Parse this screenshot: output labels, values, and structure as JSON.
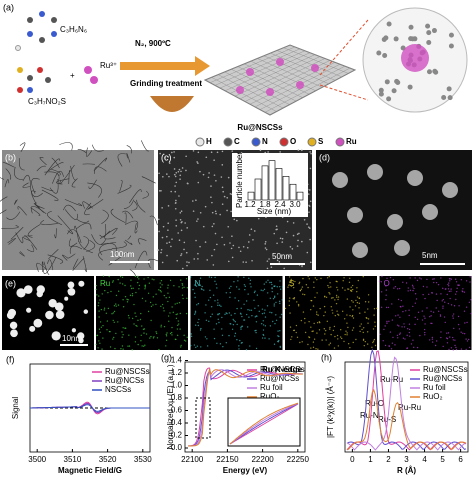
{
  "panel_a": {
    "label": "(a)",
    "reagent1": "C₃H₆N₆",
    "reagent2": "C₃H₇NO₂S",
    "plus": "+",
    "ion": "Ru³⁺",
    "condition": "N₂, 900ºC",
    "process": "Grinding treatment",
    "product": "Ru@NSCSs",
    "legend": [
      {
        "name": "H",
        "color": "#e8e8e8"
      },
      {
        "name": "C",
        "color": "#555555"
      },
      {
        "name": "N",
        "color": "#3a5bd0"
      },
      {
        "name": "O",
        "color": "#d03030"
      },
      {
        "name": "S",
        "color": "#e0b020"
      },
      {
        "name": "Ru",
        "color": "#d050c0"
      }
    ]
  },
  "panel_b": {
    "label": "(b)",
    "scale": "100nm"
  },
  "panel_c": {
    "label": "(c)",
    "scale": "50nm",
    "inset": {
      "ylabel": "Particle number",
      "xlabel": "Size (nm)",
      "xticks": [
        "1.2",
        "1.8",
        "2.4",
        "3.0"
      ],
      "counts": [
        3,
        8,
        13,
        15,
        12,
        9,
        6,
        3
      ]
    }
  },
  "panel_d": {
    "label": "(d)",
    "scale": "5nm"
  },
  "panel_e": {
    "label": "(e)",
    "scale": "10nm",
    "maps": [
      {
        "name": "Ru",
        "color": "#40d040"
      },
      {
        "name": "N",
        "color": "#40c0c0"
      },
      {
        "name": "S",
        "color": "#d0c030"
      },
      {
        "name": "O",
        "color": "#b040d0"
      }
    ]
  },
  "panel_f": {
    "label": "(f)",
    "ylabel": "Signal",
    "xlabel": "Magnetic Field/G",
    "xticks": [
      "3500",
      "3510",
      "3520",
      "3530"
    ],
    "legend": [
      {
        "name": "Ru@NSCSs",
        "color": "#e040a0"
      },
      {
        "name": "Ru@NCSs",
        "color": "#8040c0"
      },
      {
        "name": "NSCSs",
        "color": "#3050c0"
      }
    ]
  },
  "panel_g": {
    "label": "(g)",
    "ylabel": "Normalized xμ (E) (a.u.)",
    "xlabel": "Energy (eV)",
    "xticks": [
      "22100",
      "22150",
      "22200",
      "22250"
    ],
    "yticks": [
      "0.0",
      "0.2",
      "0.4",
      "0.6",
      "0.8",
      "1.0",
      "1.2",
      "1.4"
    ],
    "edge": "Ru K-edge",
    "legend": [
      {
        "name": "Ru@NSCSs",
        "color": "#e040a0"
      },
      {
        "name": "Ru@NCSs",
        "color": "#6050d0"
      },
      {
        "name": "Ru foil",
        "color": "#c080e0"
      },
      {
        "name": "RuO₂",
        "color": "#e08030"
      }
    ]
  },
  "panel_h": {
    "label": "(h)",
    "ylabel": "|FT (k³χ(k))| (Å⁻⁴)",
    "xlabel": "R (Å)",
    "xticks": [
      "0",
      "1",
      "2",
      "3",
      "4",
      "5",
      "6"
    ],
    "peaks": [
      "Ru-O",
      "Ru-N",
      "Ru-S",
      "Ru-Ru",
      "Ru-Ru"
    ],
    "legend": [
      {
        "name": "Ru@NSCSs",
        "color": "#e040a0"
      },
      {
        "name": "Ru@NCSs",
        "color": "#6050d0"
      },
      {
        "name": "Ru foil",
        "color": "#c080e0"
      },
      {
        "name": "RuO₂",
        "color": "#e08030"
      }
    ]
  }
}
